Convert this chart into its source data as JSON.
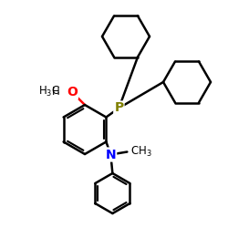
{
  "background_color": "#ffffff",
  "atom_colors": {
    "P": "#808000",
    "N": "#0000ff",
    "O": "#ff0000",
    "C": "#000000"
  },
  "bond_color": "#000000",
  "bond_width": 1.8,
  "figsize": [
    2.5,
    2.5
  ],
  "dpi": 100
}
